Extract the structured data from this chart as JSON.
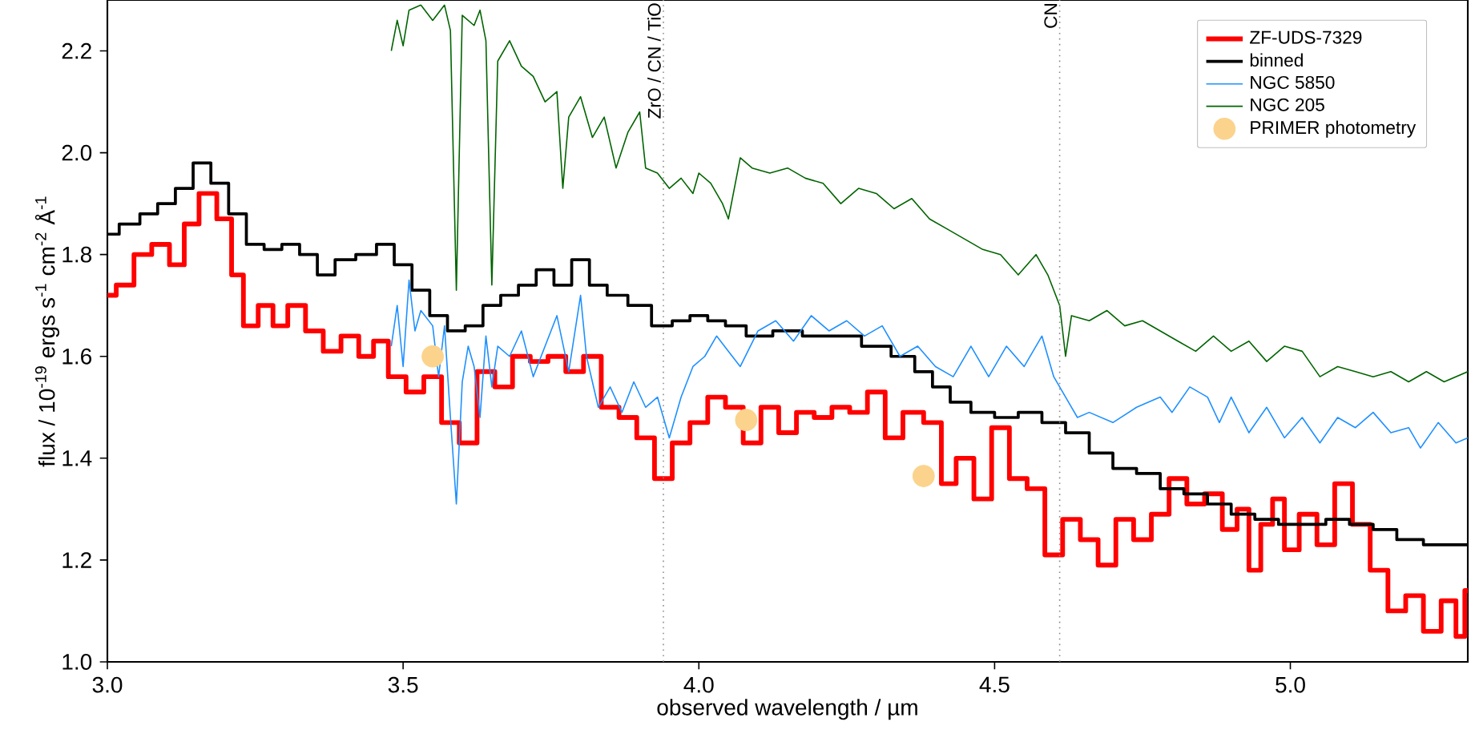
{
  "chart_data": {
    "type": "line",
    "xlabel": "observed wavelength / µm",
    "ylabel": "flux / 10$^{-19}$ ergs s$^{-1}$ cm$^{-2}$ Å$^{-1}$",
    "xlim": [
      3.0,
      5.3
    ],
    "ylim": [
      1.0,
      2.3
    ],
    "xticks": [
      {
        "value": 3.0,
        "label": "3.0"
      },
      {
        "value": 3.5,
        "label": "3.5"
      },
      {
        "value": 4.0,
        "label": "4.0"
      },
      {
        "value": 4.5,
        "label": "4.5"
      },
      {
        "value": 5.0,
        "label": "5.0"
      }
    ],
    "yticks": [
      {
        "value": 1.0,
        "label": "1.0"
      },
      {
        "value": 1.2,
        "label": "1.2"
      },
      {
        "value": 1.4,
        "label": "1.4"
      },
      {
        "value": 1.6,
        "label": "1.6"
      },
      {
        "value": 1.8,
        "label": "1.8"
      },
      {
        "value": 2.0,
        "label": "2.0"
      },
      {
        "value": 2.2,
        "label": "2.2"
      }
    ],
    "legend": "top right",
    "grid": false,
    "ref_lines": [
      {
        "axis": "x",
        "value": 3.94,
        "label": "ZrO / CN / TiO",
        "color": "#888888",
        "line_style": "dotted"
      },
      {
        "axis": "x",
        "value": 4.61,
        "label": "CN",
        "color": "#888888",
        "line_style": "dotted"
      }
    ],
    "series": [
      {
        "name": "ZF-UDS-7329",
        "type": "step",
        "color": "#ff0000",
        "marker": "none",
        "x": [
          3.0,
          3.03,
          3.06,
          3.09,
          3.12,
          3.14,
          3.17,
          3.2,
          3.22,
          3.24,
          3.27,
          3.29,
          3.32,
          3.35,
          3.38,
          3.41,
          3.44,
          3.46,
          3.49,
          3.52,
          3.55,
          3.58,
          3.61,
          3.64,
          3.67,
          3.7,
          3.73,
          3.76,
          3.79,
          3.82,
          3.85,
          3.88,
          3.91,
          3.94,
          3.97,
          4.0,
          4.03,
          4.06,
          4.09,
          4.12,
          4.15,
          4.18,
          4.21,
          4.24,
          4.27,
          4.3,
          4.33,
          4.36,
          4.4,
          4.42,
          4.45,
          4.48,
          4.51,
          4.54,
          4.57,
          4.6,
          4.63,
          4.66,
          4.69,
          4.72,
          4.75,
          4.78,
          4.81,
          4.84,
          4.87,
          4.9,
          4.92,
          4.94,
          4.96,
          4.98,
          5.0,
          5.03,
          5.06,
          5.09,
          5.12,
          5.15,
          5.18,
          5.21,
          5.24,
          5.27,
          5.29,
          5.3
        ],
        "values": [
          1.72,
          1.74,
          1.8,
          1.82,
          1.78,
          1.86,
          1.92,
          1.87,
          1.76,
          1.66,
          1.7,
          1.66,
          1.7,
          1.65,
          1.61,
          1.64,
          1.6,
          1.63,
          1.56,
          1.53,
          1.56,
          1.47,
          1.43,
          1.57,
          1.54,
          1.6,
          1.59,
          1.6,
          1.57,
          1.6,
          1.5,
          1.48,
          1.44,
          1.36,
          1.43,
          1.47,
          1.52,
          1.5,
          1.43,
          1.5,
          1.45,
          1.49,
          1.48,
          1.5,
          1.49,
          1.53,
          1.44,
          1.49,
          1.47,
          1.35,
          1.4,
          1.32,
          1.46,
          1.36,
          1.34,
          1.21,
          1.28,
          1.24,
          1.19,
          1.28,
          1.24,
          1.29,
          1.36,
          1.31,
          1.33,
          1.26,
          1.3,
          1.18,
          1.27,
          1.32,
          1.22,
          1.29,
          1.23,
          1.35,
          1.27,
          1.18,
          1.1,
          1.13,
          1.06,
          1.12,
          1.05,
          1.14
        ]
      },
      {
        "name": "binned",
        "type": "step",
        "color": "#000000",
        "marker": "none",
        "x": [
          3.0,
          3.04,
          3.07,
          3.1,
          3.13,
          3.16,
          3.19,
          3.22,
          3.25,
          3.28,
          3.31,
          3.34,
          3.37,
          3.4,
          3.44,
          3.47,
          3.5,
          3.53,
          3.56,
          3.59,
          3.62,
          3.65,
          3.68,
          3.71,
          3.74,
          3.77,
          3.8,
          3.83,
          3.86,
          3.9,
          3.94,
          3.97,
          4.0,
          4.03,
          4.06,
          4.1,
          4.15,
          4.2,
          4.25,
          4.3,
          4.35,
          4.38,
          4.41,
          4.44,
          4.48,
          4.52,
          4.56,
          4.6,
          4.64,
          4.68,
          4.72,
          4.76,
          4.8,
          4.84,
          4.88,
          4.92,
          4.96,
          5.0,
          5.04,
          5.08,
          5.12,
          5.16,
          5.2,
          5.25,
          5.3
        ],
        "values": [
          1.84,
          1.86,
          1.88,
          1.9,
          1.93,
          1.98,
          1.94,
          1.88,
          1.82,
          1.81,
          1.82,
          1.8,
          1.76,
          1.79,
          1.8,
          1.82,
          1.78,
          1.73,
          1.68,
          1.65,
          1.66,
          1.7,
          1.72,
          1.74,
          1.77,
          1.74,
          1.79,
          1.74,
          1.72,
          1.7,
          1.66,
          1.67,
          1.68,
          1.67,
          1.66,
          1.64,
          1.65,
          1.64,
          1.64,
          1.62,
          1.6,
          1.57,
          1.54,
          1.51,
          1.49,
          1.48,
          1.49,
          1.47,
          1.45,
          1.41,
          1.38,
          1.37,
          1.34,
          1.33,
          1.31,
          1.29,
          1.28,
          1.27,
          1.27,
          1.28,
          1.27,
          1.26,
          1.24,
          1.23,
          1.23
        ]
      },
      {
        "name": "NGC 5850",
        "type": "line",
        "color": "#1e90ff",
        "marker": "none",
        "x": [
          3.48,
          3.49,
          3.5,
          3.51,
          3.52,
          3.53,
          3.54,
          3.55,
          3.56,
          3.57,
          3.58,
          3.59,
          3.6,
          3.61,
          3.62,
          3.63,
          3.64,
          3.65,
          3.66,
          3.68,
          3.7,
          3.72,
          3.74,
          3.76,
          3.78,
          3.8,
          3.81,
          3.83,
          3.85,
          3.87,
          3.89,
          3.91,
          3.93,
          3.95,
          3.97,
          3.99,
          4.01,
          4.03,
          4.05,
          4.07,
          4.1,
          4.13,
          4.16,
          4.19,
          4.22,
          4.25,
          4.28,
          4.31,
          4.34,
          4.37,
          4.4,
          4.43,
          4.46,
          4.49,
          4.52,
          4.55,
          4.58,
          4.6,
          4.62,
          4.64,
          4.66,
          4.7,
          4.74,
          4.78,
          4.8,
          4.83,
          4.86,
          4.88,
          4.9,
          4.93,
          4.96,
          4.99,
          5.02,
          5.05,
          5.08,
          5.11,
          5.14,
          5.17,
          5.2,
          5.22,
          5.25,
          5.28,
          5.3
        ],
        "values": [
          1.62,
          1.7,
          1.58,
          1.75,
          1.65,
          1.69,
          null,
          1.66,
          1.56,
          1.66,
          1.48,
          1.31,
          1.55,
          1.62,
          1.58,
          1.48,
          1.64,
          1.54,
          1.62,
          1.6,
          1.65,
          1.56,
          1.62,
          1.68,
          1.57,
          1.72,
          1.6,
          1.5,
          1.54,
          1.49,
          1.55,
          1.5,
          1.52,
          1.44,
          1.52,
          1.58,
          1.6,
          1.64,
          1.61,
          1.58,
          1.65,
          1.67,
          1.63,
          1.68,
          1.65,
          1.67,
          1.64,
          1.66,
          1.6,
          1.62,
          1.58,
          1.56,
          1.62,
          1.56,
          1.62,
          1.58,
          1.64,
          1.56,
          1.52,
          1.48,
          1.49,
          1.47,
          1.5,
          1.52,
          1.49,
          1.54,
          1.52,
          1.47,
          1.52,
          1.45,
          1.5,
          1.44,
          1.48,
          1.43,
          1.48,
          1.46,
          1.49,
          1.45,
          1.46,
          1.42,
          1.47,
          1.43,
          1.44
        ]
      },
      {
        "name": "NGC 205",
        "type": "line",
        "color": "#006400",
        "marker": "none",
        "x": [
          3.48,
          3.49,
          3.5,
          3.51,
          3.53,
          3.55,
          3.57,
          3.58,
          3.59,
          3.6,
          3.62,
          3.63,
          3.64,
          3.65,
          3.66,
          3.68,
          3.7,
          3.72,
          3.74,
          3.76,
          3.77,
          3.78,
          3.8,
          3.82,
          3.84,
          3.86,
          3.88,
          3.9,
          3.91,
          3.93,
          3.95,
          3.97,
          3.99,
          4.0,
          4.02,
          4.04,
          4.05,
          4.07,
          4.09,
          4.12,
          4.15,
          4.18,
          4.21,
          4.24,
          4.27,
          4.3,
          4.33,
          4.36,
          4.39,
          4.42,
          4.45,
          4.48,
          4.51,
          4.54,
          4.57,
          4.59,
          4.61,
          4.62,
          4.63,
          4.66,
          4.69,
          4.72,
          4.75,
          4.78,
          4.81,
          4.84,
          4.87,
          4.9,
          4.93,
          4.96,
          4.99,
          5.02,
          5.05,
          5.08,
          5.11,
          5.14,
          5.17,
          5.2,
          5.23,
          5.26,
          5.3
        ],
        "values": [
          2.2,
          2.26,
          2.21,
          2.28,
          2.29,
          2.26,
          2.29,
          2.24,
          1.73,
          2.27,
          2.25,
          2.28,
          2.22,
          1.74,
          2.18,
          2.22,
          2.17,
          2.15,
          2.1,
          2.12,
          1.93,
          2.07,
          2.11,
          2.03,
          2.07,
          1.97,
          2.04,
          2.08,
          1.97,
          1.96,
          1.93,
          1.95,
          1.92,
          1.96,
          1.94,
          1.9,
          1.87,
          1.99,
          1.97,
          1.96,
          1.97,
          1.95,
          1.94,
          1.9,
          1.93,
          1.92,
          1.89,
          1.91,
          1.87,
          1.85,
          1.83,
          1.81,
          1.8,
          1.76,
          1.8,
          1.76,
          1.7,
          1.6,
          1.68,
          1.67,
          1.69,
          1.66,
          1.67,
          1.65,
          1.63,
          1.61,
          1.64,
          1.61,
          1.63,
          1.59,
          1.62,
          1.61,
          1.56,
          1.58,
          1.57,
          1.56,
          1.57,
          1.55,
          1.57,
          1.55,
          1.57
        ]
      },
      {
        "name": "PRIMER photometry",
        "type": "scatter",
        "color": "#fbd38c",
        "marker": "circle",
        "x": [
          3.55,
          4.08,
          4.38
        ],
        "values": [
          1.6,
          1.475,
          1.365
        ]
      }
    ]
  }
}
